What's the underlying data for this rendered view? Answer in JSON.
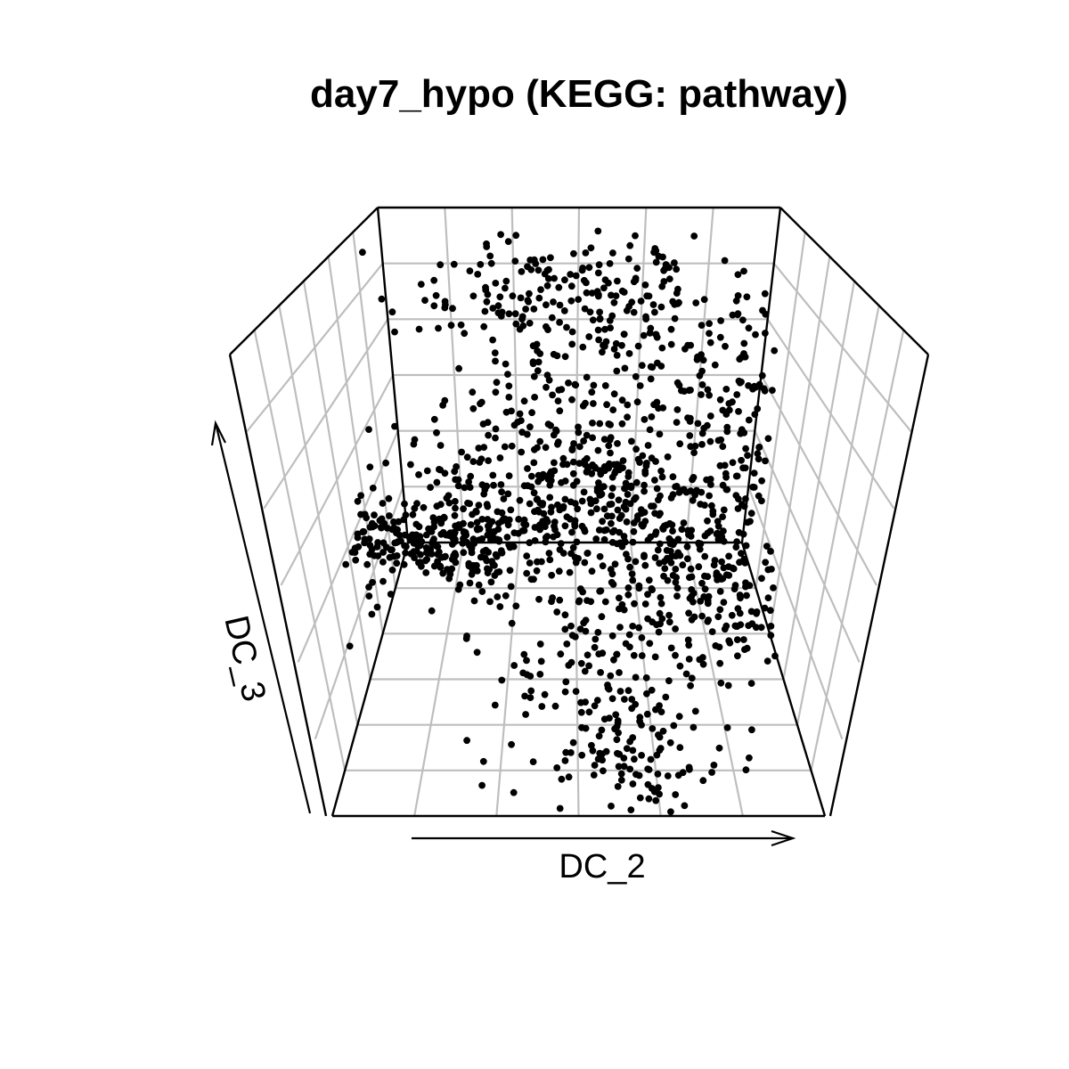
{
  "chart_data": {
    "type": "scatter",
    "title": "day7_hypo (KEGG: pathway)",
    "xlabel": "DC_2",
    "ylabel": "DC_3",
    "grid": true,
    "legend": "none",
    "view": "3d-box"
  }
}
